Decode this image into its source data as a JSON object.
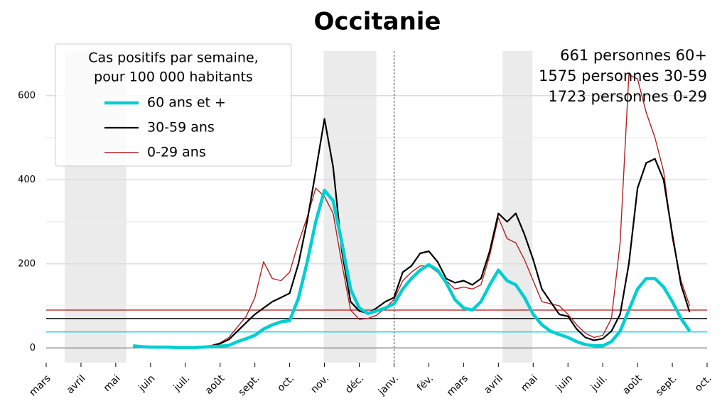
{
  "chart_data": {
    "type": "line",
    "title": "Occitanie",
    "title_color": "#4169e1",
    "legend_title": [
      "Cas positifs par semaine,",
      "pour 100 000 habitants"
    ],
    "legend": "upper left",
    "annotation": [
      "661 personnes 60+",
      "1575 personnes 30-59",
      "1723 personnes 0-29"
    ],
    "xlim": [
      0,
      19
    ],
    "xticks": [
      {
        "value": 0,
        "label": "mars"
      },
      {
        "value": 1,
        "label": "avril"
      },
      {
        "value": 2,
        "label": "mai"
      },
      {
        "value": 3,
        "label": "juin"
      },
      {
        "value": 4,
        "label": "juil."
      },
      {
        "value": 5,
        "label": "août"
      },
      {
        "value": 6,
        "label": "sept."
      },
      {
        "value": 7,
        "label": "oct."
      },
      {
        "value": 8,
        "label": "nov."
      },
      {
        "value": 9,
        "label": "déc."
      },
      {
        "value": 10,
        "label": "janv."
      },
      {
        "value": 11,
        "label": "fév."
      },
      {
        "value": 12,
        "label": "mars"
      },
      {
        "value": 13,
        "label": "avril"
      },
      {
        "value": 14,
        "label": "mai"
      },
      {
        "value": 15,
        "label": "juin"
      },
      {
        "value": 16,
        "label": "juil."
      },
      {
        "value": 17,
        "label": "août"
      },
      {
        "value": 18,
        "label": "sept."
      },
      {
        "value": 19,
        "label": "oct."
      }
    ],
    "ylim": [
      -35,
      706
    ],
    "yticks": [
      0,
      200,
      400,
      600
    ],
    "yminorticks": [
      100,
      300,
      500
    ],
    "grid": true,
    "shaded_spans": [
      [
        0.53,
        2.31
      ],
      [
        7.98,
        9.49
      ],
      [
        13.12,
        13.98
      ]
    ],
    "vline": 10,
    "hlines": [
      {
        "value": 90,
        "color": "#b22222"
      },
      {
        "value": 70,
        "color": "#000000"
      },
      {
        "value": 38,
        "color": "#00ced1"
      },
      {
        "value": 0,
        "color": "#808080"
      }
    ],
    "x": [
      2.5,
      2.75,
      3,
      3.25,
      3.5,
      3.75,
      4,
      4.25,
      4.5,
      4.75,
      5,
      5.25,
      5.5,
      5.75,
      6,
      6.25,
      6.5,
      6.75,
      7,
      7.25,
      7.5,
      7.75,
      8,
      8.25,
      8.5,
      8.75,
      9,
      9.25,
      9.5,
      9.75,
      10,
      10.25,
      10.5,
      10.75,
      11,
      11.25,
      11.5,
      11.75,
      12,
      12.25,
      12.5,
      12.75,
      13,
      13.25,
      13.5,
      13.75,
      14,
      14.25,
      14.5,
      14.75,
      15,
      15.25,
      15.5,
      15.75,
      16,
      16.25,
      16.5,
      16.75,
      17,
      17.25,
      17.5,
      17.75,
      18,
      18.25,
      18.5
    ],
    "series": [
      {
        "name": "60 ans et +",
        "color": "#00ced1",
        "values": [
          5,
          3,
          2,
          2,
          2,
          1,
          1,
          1,
          2,
          3,
          4,
          6,
          15,
          22,
          30,
          45,
          55,
          62,
          65,
          118,
          203,
          300,
          375,
          350,
          250,
          140,
          95,
          82,
          88,
          95,
          105,
          140,
          165,
          185,
          198,
          185,
          155,
          115,
          95,
          90,
          110,
          150,
          185,
          160,
          150,
          120,
          80,
          55,
          40,
          32,
          25,
          15,
          8,
          5,
          5,
          15,
          40,
          90,
          140,
          165,
          165,
          145,
          110,
          70,
          40
        ]
      },
      {
        "name": "30-59 ans",
        "color": "#000000",
        "values": [
          3,
          3,
          3,
          3,
          3,
          2,
          2,
          2,
          3,
          5,
          10,
          20,
          40,
          60,
          80,
          95,
          110,
          120,
          130,
          200,
          300,
          420,
          545,
          430,
          230,
          110,
          88,
          82,
          95,
          110,
          120,
          180,
          195,
          225,
          230,
          205,
          165,
          155,
          160,
          150,
          165,
          230,
          320,
          300,
          320,
          270,
          210,
          140,
          110,
          80,
          75,
          45,
          25,
          18,
          22,
          40,
          80,
          200,
          380,
          440,
          450,
          400,
          270,
          150,
          85
        ]
      },
      {
        "name": "0-29 ans",
        "color": "#b22222",
        "values": [
          2,
          2,
          2,
          2,
          2,
          2,
          2,
          2,
          3,
          6,
          12,
          25,
          50,
          75,
          120,
          205,
          165,
          160,
          180,
          250,
          310,
          380,
          360,
          320,
          200,
          90,
          68,
          70,
          78,
          95,
          115,
          160,
          180,
          195,
          195,
          180,
          160,
          140,
          145,
          140,
          150,
          220,
          310,
          260,
          250,
          210,
          160,
          110,
          105,
          100,
          80,
          55,
          35,
          25,
          30,
          70,
          250,
          650,
          640,
          560,
          500,
          420,
          260,
          160,
          100
        ]
      }
    ]
  }
}
